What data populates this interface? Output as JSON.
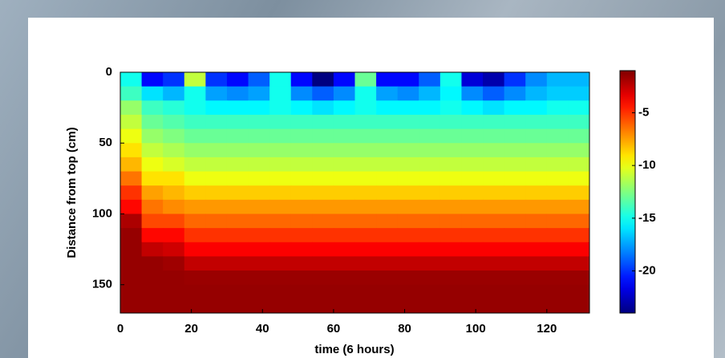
{
  "chart_data": {
    "type": "heatmap",
    "x_label": "time (6 hours)",
    "y_label": "Distance from top (cm)",
    "xbins": [
      0,
      6,
      12,
      18,
      24,
      30,
      36,
      42,
      48,
      54,
      60,
      66,
      72,
      78,
      84,
      90,
      96,
      102,
      108,
      114,
      120,
      126,
      132
    ],
    "ybins": [
      0,
      10,
      20,
      30,
      40,
      50,
      60,
      70,
      80,
      90,
      100,
      110,
      120,
      130,
      140,
      150,
      160,
      170
    ],
    "xlim": [
      0,
      132
    ],
    "ylim": [
      0,
      170
    ],
    "y_reversed": true,
    "xticks": [
      0,
      20,
      40,
      60,
      80,
      100,
      120
    ],
    "yticks": [
      0,
      50,
      100,
      150
    ],
    "colormap": "jet",
    "clim": [
      -24,
      -1
    ],
    "cticks": [
      -5,
      -10,
      -15,
      -20
    ],
    "values": [
      [
        -15,
        -21,
        -20,
        -11,
        -20,
        -21,
        -19,
        -15,
        -21,
        -24,
        -21,
        -13,
        -21,
        -21,
        -19,
        -15,
        -22,
        -23,
        -20,
        -18,
        -17,
        -17
      ],
      [
        -14,
        -16,
        -17,
        -15,
        -17.5,
        -18,
        -17.5,
        -15,
        -18,
        -19,
        -18,
        -15,
        -17.5,
        -18,
        -17,
        -15.5,
        -18,
        -19,
        -18,
        -17,
        -16.5,
        -16.5
      ],
      [
        -12,
        -14,
        -14.5,
        -15,
        -15.5,
        -15.5,
        -15.5,
        -15,
        -15.5,
        -16,
        -15.5,
        -15,
        -15.5,
        -15.5,
        -15.5,
        -15,
        -15.5,
        -16,
        -15.5,
        -15.5,
        -15,
        -15
      ],
      [
        -11,
        -13,
        -13.5,
        -14,
        -14,
        -14,
        -14,
        -14,
        -14,
        -14,
        -14,
        -14,
        -14,
        -14,
        -14,
        -14,
        -14,
        -14,
        -14,
        -14,
        -14,
        -14
      ],
      [
        -10,
        -12,
        -12.5,
        -13,
        -13,
        -13,
        -13,
        -13,
        -13,
        -13,
        -13,
        -13,
        -13,
        -13,
        -13,
        -13,
        -13,
        -13,
        -13,
        -13,
        -13,
        -13
      ],
      [
        -9,
        -11,
        -11.5,
        -12,
        -12,
        -12,
        -12,
        -12,
        -12,
        -12,
        -12,
        -12,
        -12,
        -12,
        -12,
        -12,
        -12,
        -12,
        -12,
        -12,
        -12,
        -12
      ],
      [
        -8,
        -10,
        -10.5,
        -11,
        -11,
        -11,
        -11,
        -11,
        -11,
        -11,
        -11,
        -11,
        -11,
        -11,
        -11,
        -11,
        -11,
        -11,
        -11,
        -11,
        -11,
        -11
      ],
      [
        -6.5,
        -9,
        -9,
        -10,
        -10,
        -10,
        -10,
        -10,
        -10,
        -10,
        -10,
        -10,
        -10,
        -10,
        -10,
        -10,
        -10,
        -10,
        -10,
        -10,
        -10,
        -10
      ],
      [
        -5,
        -7.5,
        -8,
        -8.5,
        -8.5,
        -8.5,
        -8.5,
        -8.5,
        -8.5,
        -8.5,
        -8.5,
        -8.5,
        -8.5,
        -8.5,
        -8.5,
        -8.5,
        -8.5,
        -8.5,
        -8.5,
        -8.5,
        -8.5,
        -8.5
      ],
      [
        -4,
        -6.5,
        -7,
        -7.3,
        -7.3,
        -7.3,
        -7.3,
        -7.3,
        -7.3,
        -7.3,
        -7.3,
        -7.3,
        -7.3,
        -7.3,
        -7.3,
        -7.3,
        -7.3,
        -7.3,
        -7.3,
        -7.3,
        -7.3,
        -7.3
      ],
      [
        -2,
        -5.5,
        -5.5,
        -6.2,
        -6.2,
        -6.2,
        -6.2,
        -6.2,
        -6.2,
        -6.2,
        -6.2,
        -6.2,
        -6.2,
        -6.2,
        -6.2,
        -6.2,
        -6.2,
        -6.2,
        -6.2,
        -6.2,
        -6.2,
        -6.2
      ],
      [
        -1.5,
        -4,
        -4,
        -5,
        -5,
        -5,
        -5,
        -5,
        -5,
        -5,
        -5,
        -5,
        -5,
        -5,
        -5,
        -5,
        -5,
        -5,
        -5,
        -5,
        -5,
        -5
      ],
      [
        -1.5,
        -2.5,
        -2.8,
        -3.8,
        -3.8,
        -3.8,
        -3.8,
        -3.8,
        -3.8,
        -3.8,
        -3.8,
        -3.8,
        -3.8,
        -3.8,
        -3.8,
        -3.8,
        -3.8,
        -3.8,
        -3.8,
        -3.8,
        -3.8,
        -3.8
      ],
      [
        -1.5,
        -1.5,
        -1.7,
        -2.5,
        -2.5,
        -2.5,
        -2.5,
        -2.5,
        -2.5,
        -2.5,
        -2.5,
        -2.5,
        -2.5,
        -2.5,
        -2.5,
        -2.5,
        -2.5,
        -2.5,
        -2.5,
        -2.5,
        -2.5,
        -2.5
      ],
      [
        -1.5,
        -1.5,
        -1.5,
        -1.6,
        -1.6,
        -1.6,
        -1.6,
        -1.6,
        -1.6,
        -1.6,
        -1.6,
        -1.6,
        -1.6,
        -1.6,
        -1.6,
        -1.6,
        -1.6,
        -1.6,
        -1.6,
        -1.6,
        -1.6,
        -1.6
      ],
      [
        -1.5,
        -1.5,
        -1.5,
        -1.5,
        -1.5,
        -1.5,
        -1.5,
        -1.5,
        -1.5,
        -1.5,
        -1.5,
        -1.5,
        -1.5,
        -1.5,
        -1.5,
        -1.5,
        -1.5,
        -1.5,
        -1.5,
        -1.5,
        -1.5,
        -1.5
      ],
      [
        -1.5,
        -1.5,
        -1.5,
        -1.5,
        -1.5,
        -1.5,
        -1.5,
        -1.5,
        -1.5,
        -1.5,
        -1.5,
        -1.5,
        -1.5,
        -1.5,
        -1.5,
        -1.5,
        -1.5,
        -1.5,
        -1.5,
        -1.5,
        -1.5,
        -1.5
      ]
    ]
  }
}
